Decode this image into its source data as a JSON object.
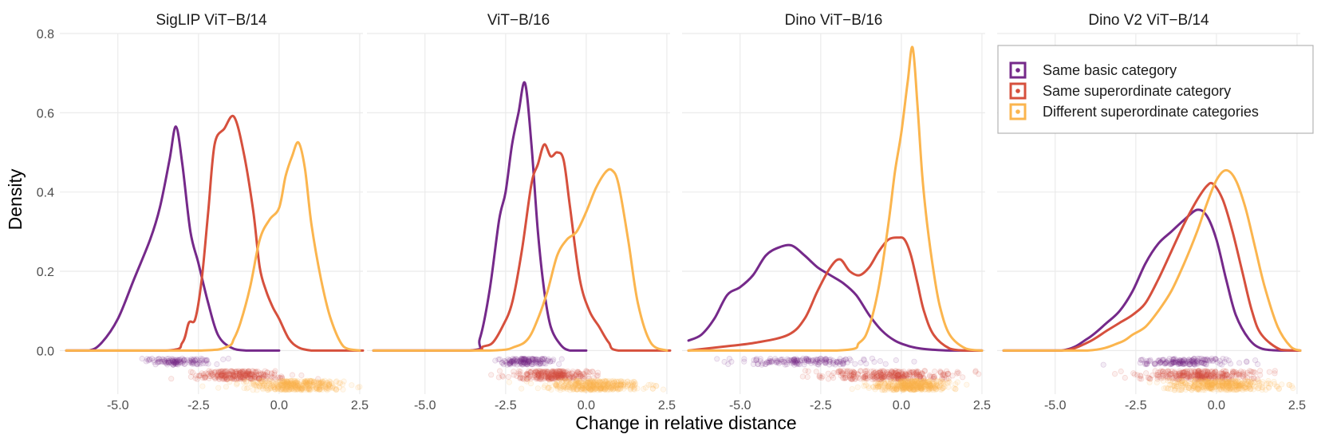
{
  "chart_data": {
    "type": "density",
    "x_label": "Change in relative distance",
    "y_label": "Density",
    "x_ticks": [
      "-5.0",
      "-2.5",
      "0.0",
      "2.5"
    ],
    "x_tick_values": [
      -5.0,
      -2.5,
      0.0,
      2.5
    ],
    "y_ticks": [
      "0.0",
      "0.2",
      "0.4",
      "0.6",
      "0.8"
    ],
    "y_tick_values": [
      0.0,
      0.2,
      0.4,
      0.6,
      0.8
    ],
    "xlim": [
      -6.8,
      2.6
    ],
    "ylim": [
      -0.11,
      0.8
    ],
    "grid": true,
    "legend": {
      "position": "top-right",
      "items": [
        {
          "label": "Same basic category",
          "color": "#75298a"
        },
        {
          "label": "Same superordinate category",
          "color": "#d6503d"
        },
        {
          "label": "Different superordinate categories",
          "color": "#fbb54e"
        }
      ]
    },
    "panels": [
      {
        "title": "SigLIP ViT−B/14",
        "series": [
          {
            "name": "Same basic category",
            "color": "#75298a",
            "x": [
              -6.6,
              -5.9,
              -5.5,
              -5.0,
              -4.5,
              -4.0,
              -3.7,
              -3.4,
              -3.2,
              -3.0,
              -2.75,
              -2.5,
              -2.2,
              -1.9,
              -1.5,
              -1.0,
              0.0
            ],
            "y": [
              0.0,
              0.0,
              0.02,
              0.08,
              0.18,
              0.28,
              0.36,
              0.48,
              0.565,
              0.47,
              0.3,
              0.22,
              0.12,
              0.04,
              0.008,
              0.0,
              0.0
            ],
            "points": {
              "center": -3.1,
              "spread": 1.05,
              "n": 120,
              "y": -0.028,
              "jitter": 0.008
            }
          },
          {
            "name": "Same superordinate category",
            "color": "#d6503d",
            "x": [
              -6.6,
              -3.5,
              -3.0,
              -2.8,
              -2.6,
              -2.4,
              -2.2,
              -2.0,
              -1.7,
              -1.4,
              -1.1,
              -0.8,
              -0.6,
              -0.4,
              -0.2,
              0.0,
              0.3,
              0.6,
              1.0,
              1.5,
              2.6
            ],
            "y": [
              0.0,
              0.0,
              0.02,
              0.07,
              0.08,
              0.18,
              0.35,
              0.52,
              0.56,
              0.59,
              0.5,
              0.35,
              0.21,
              0.15,
              0.11,
              0.08,
              0.03,
              0.008,
              0.0,
              0.0,
              0.0
            ],
            "points": {
              "center": -1.2,
              "spread": 1.15,
              "n": 260,
              "y": -0.062,
              "jitter": 0.011
            }
          },
          {
            "name": "Different superordinate categories",
            "color": "#fbb54e",
            "x": [
              -6.6,
              -2.5,
              -1.6,
              -1.4,
              -1.2,
              -0.9,
              -0.6,
              -0.3,
              0.0,
              0.2,
              0.4,
              0.6,
              0.8,
              1.0,
              1.3,
              1.6,
              2.0,
              2.5
            ],
            "y": [
              0.0,
              0.0,
              0.01,
              0.03,
              0.07,
              0.16,
              0.28,
              0.33,
              0.36,
              0.44,
              0.49,
              0.525,
              0.46,
              0.32,
              0.18,
              0.08,
              0.01,
              0.0
            ],
            "points": {
              "center": 0.5,
              "spread": 1.3,
              "n": 360,
              "y": -0.088,
              "jitter": 0.012
            }
          }
        ]
      },
      {
        "title": "ViT−B/16",
        "series": [
          {
            "name": "Same basic category",
            "color": "#75298a",
            "x": [
              -6.6,
              -3.6,
              -3.3,
              -3.0,
              -2.7,
              -2.5,
              -2.3,
              -2.1,
              -1.9,
              -1.7,
              -1.5,
              -1.3,
              -1.1,
              -0.8,
              -0.5,
              0.0
            ],
            "y": [
              0.0,
              0.0,
              0.03,
              0.15,
              0.33,
              0.4,
              0.52,
              0.6,
              0.675,
              0.52,
              0.3,
              0.15,
              0.06,
              0.015,
              0.0,
              0.0
            ],
            "points": {
              "center": -1.9,
              "spread": 0.75,
              "n": 140,
              "y": -0.028,
              "jitter": 0.008
            }
          },
          {
            "name": "Same superordinate category",
            "color": "#d6503d",
            "x": [
              -6.6,
              -3.6,
              -3.2,
              -2.9,
              -2.6,
              -2.3,
              -2.0,
              -1.7,
              -1.5,
              -1.3,
              -1.1,
              -0.9,
              -0.7,
              -0.5,
              -0.2,
              0.1,
              0.4,
              0.7,
              1.0,
              2.6
            ],
            "y": [
              0.0,
              0.0,
              0.01,
              0.02,
              0.06,
              0.12,
              0.25,
              0.42,
              0.47,
              0.52,
              0.49,
              0.5,
              0.48,
              0.36,
              0.18,
              0.1,
              0.06,
              0.02,
              0.0,
              0.0
            ],
            "points": {
              "center": -1.0,
              "spread": 1.05,
              "n": 260,
              "y": -0.062,
              "jitter": 0.011
            }
          },
          {
            "name": "Different superordinate categories",
            "color": "#fbb54e",
            "x": [
              -6.6,
              -3.0,
              -2.2,
              -1.8,
              -1.5,
              -1.2,
              -0.9,
              -0.6,
              -0.3,
              0.0,
              0.3,
              0.6,
              0.8,
              1.0,
              1.3,
              1.6,
              2.0,
              2.5
            ],
            "y": [
              0.0,
              0.0,
              0.01,
              0.03,
              0.08,
              0.15,
              0.24,
              0.28,
              0.3,
              0.35,
              0.41,
              0.45,
              0.455,
              0.42,
              0.28,
              0.12,
              0.02,
              0.0
            ],
            "points": {
              "center": 0.3,
              "spread": 1.3,
              "n": 360,
              "y": -0.088,
              "jitter": 0.012
            }
          }
        ]
      },
      {
        "title": "Dino ViT−B/16",
        "series": [
          {
            "name": "Same basic category",
            "color": "#75298a",
            "x": [
              -6.6,
              -6.2,
              -5.8,
              -5.4,
              -5.0,
              -4.6,
              -4.2,
              -3.8,
              -3.4,
              -3.0,
              -2.6,
              -2.2,
              -1.8,
              -1.4,
              -1.0,
              -0.6,
              -0.2,
              0.2,
              0.6,
              1.0,
              1.5,
              2.0,
              2.5
            ],
            "y": [
              0.025,
              0.04,
              0.08,
              0.14,
              0.16,
              0.19,
              0.24,
              0.26,
              0.265,
              0.24,
              0.21,
              0.19,
              0.17,
              0.14,
              0.09,
              0.05,
              0.025,
              0.012,
              0.005,
              0.002,
              0.0,
              0.0,
              0.0
            ],
            "points": {
              "center": -3.0,
              "spread": 1.9,
              "n": 160,
              "y": -0.028,
              "jitter": 0.008
            }
          },
          {
            "name": "Same superordinate category",
            "color": "#d6503d",
            "x": [
              -6.6,
              -5.5,
              -4.5,
              -3.5,
              -3.0,
              -2.6,
              -2.2,
              -1.9,
              -1.6,
              -1.3,
              -1.0,
              -0.7,
              -0.4,
              -0.1,
              0.1,
              0.3,
              0.5,
              0.7,
              1.0,
              1.5,
              2.0,
              2.5
            ],
            "y": [
              0.0,
              0.01,
              0.02,
              0.04,
              0.08,
              0.15,
              0.21,
              0.23,
              0.2,
              0.19,
              0.21,
              0.25,
              0.28,
              0.285,
              0.28,
              0.24,
              0.17,
              0.1,
              0.04,
              0.005,
              0.0,
              0.0
            ],
            "points": {
              "center": -0.3,
              "spread": 1.9,
              "n": 300,
              "y": -0.062,
              "jitter": 0.011
            }
          },
          {
            "name": "Different superordinate categories",
            "color": "#fbb54e",
            "x": [
              -6.6,
              -2.0,
              -1.3,
              -1.0,
              -0.7,
              -0.4,
              -0.2,
              0.0,
              0.2,
              0.35,
              0.5,
              0.65,
              0.8,
              1.0,
              1.2,
              1.5,
              2.0,
              2.5
            ],
            "y": [
              0.0,
              0.0,
              0.02,
              0.06,
              0.16,
              0.32,
              0.45,
              0.55,
              0.68,
              0.765,
              0.62,
              0.44,
              0.32,
              0.2,
              0.11,
              0.04,
              0.005,
              0.0
            ],
            "points": {
              "center": 0.3,
              "spread": 1.0,
              "n": 380,
              "y": -0.088,
              "jitter": 0.012
            }
          }
        ]
      },
      {
        "title": "Dino V2 ViT−B/14",
        "series": [
          {
            "name": "Same basic category",
            "color": "#75298a",
            "x": [
              -6.6,
              -4.8,
              -4.0,
              -3.4,
              -3.0,
              -2.6,
              -2.2,
              -1.8,
              -1.4,
              -1.0,
              -0.6,
              -0.3,
              0.0,
              0.3,
              0.6,
              1.0,
              1.4,
              2.0,
              2.6
            ],
            "y": [
              0.0,
              0.0,
              0.03,
              0.07,
              0.1,
              0.15,
              0.22,
              0.27,
              0.3,
              0.33,
              0.355,
              0.34,
              0.28,
              0.18,
              0.09,
              0.03,
              0.005,
              0.0,
              0.0
            ],
            "points": {
              "center": -0.9,
              "spread": 1.4,
              "n": 160,
              "y": -0.028,
              "jitter": 0.008
            }
          },
          {
            "name": "Same superordinate category",
            "color": "#d6503d",
            "x": [
              -6.6,
              -4.8,
              -4.0,
              -3.4,
              -3.0,
              -2.6,
              -2.2,
              -1.8,
              -1.4,
              -1.0,
              -0.6,
              -0.3,
              -0.1,
              0.2,
              0.5,
              0.8,
              1.1,
              1.4,
              2.0,
              2.6
            ],
            "y": [
              0.0,
              0.0,
              0.02,
              0.05,
              0.07,
              0.09,
              0.12,
              0.18,
              0.25,
              0.32,
              0.38,
              0.415,
              0.42,
              0.38,
              0.3,
              0.2,
              0.1,
              0.04,
              0.002,
              0.0
            ],
            "points": {
              "center": -0.5,
              "spread": 1.6,
              "n": 300,
              "y": -0.062,
              "jitter": 0.011
            }
          },
          {
            "name": "Different superordinate categories",
            "color": "#fbb54e",
            "x": [
              -6.6,
              -4.0,
              -3.0,
              -2.6,
              -2.2,
              -1.8,
              -1.4,
              -1.0,
              -0.6,
              -0.3,
              0.0,
              0.3,
              0.6,
              0.9,
              1.2,
              1.5,
              1.9,
              2.3,
              2.6
            ],
            "y": [
              0.0,
              0.0,
              0.02,
              0.04,
              0.06,
              0.1,
              0.15,
              0.22,
              0.3,
              0.37,
              0.43,
              0.455,
              0.43,
              0.36,
              0.26,
              0.16,
              0.06,
              0.01,
              0.0
            ],
            "points": {
              "center": 0.1,
              "spread": 1.4,
              "n": 380,
              "y": -0.088,
              "jitter": 0.012
            }
          }
        ]
      }
    ]
  }
}
